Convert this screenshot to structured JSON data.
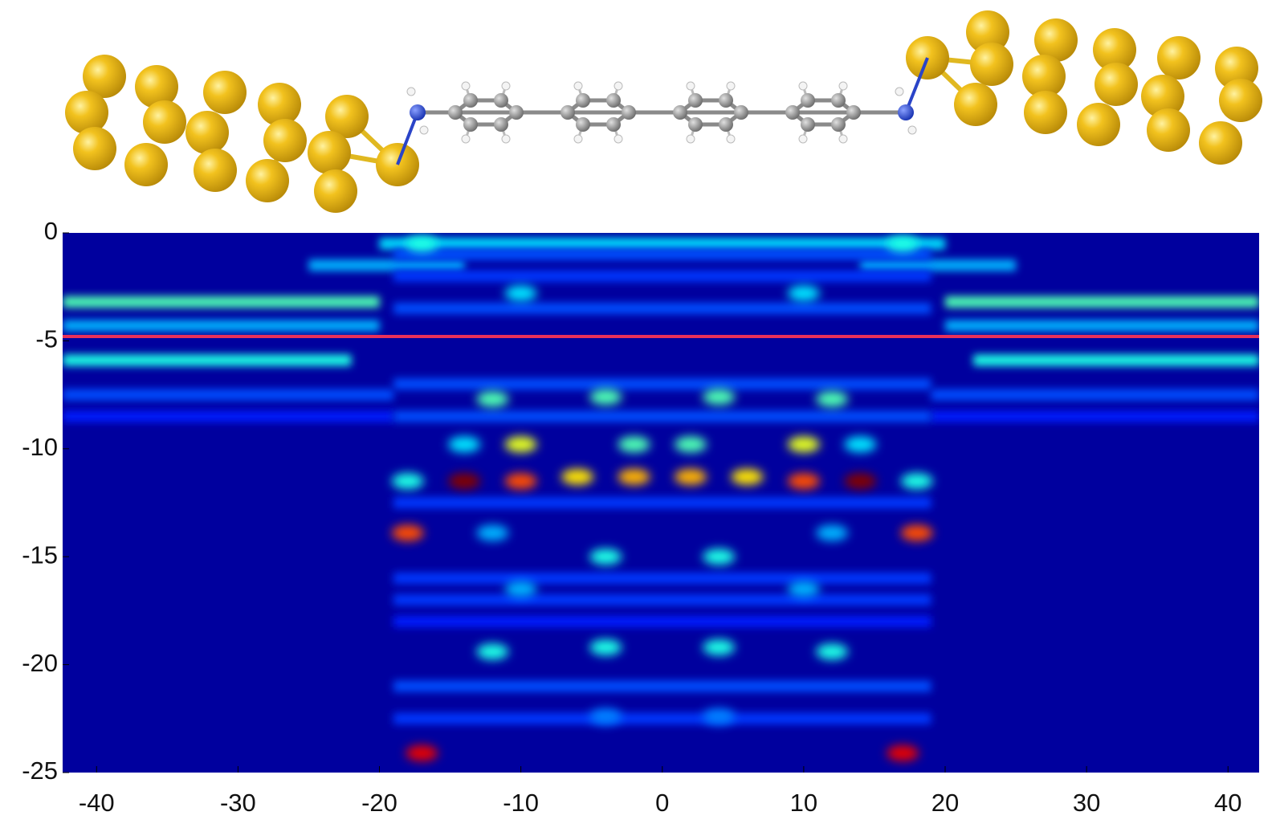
{
  "chart_data": {
    "type": "heatmap",
    "colormap": "jet",
    "xlim": [
      -42.4,
      42.2
    ],
    "ylim": [
      -25,
      0
    ],
    "zlim": [
      0,
      1
    ],
    "xticks": [
      -40,
      -30,
      -20,
      -10,
      0,
      10,
      20,
      30,
      40
    ],
    "yticks": [
      0,
      -5,
      -10,
      -15,
      -20,
      -25
    ],
    "reference_line": {
      "y": -4.8,
      "color": "#e8305a"
    },
    "bands": {
      "y": [
        -3.2,
        -3.2,
        -5.9,
        -5.9,
        -4.3,
        -4.3,
        -7.5,
        -7.5,
        -8.5,
        -8.5,
        -1.5,
        -1.5,
        -0.5,
        -1.0,
        -2.0,
        -3.5,
        -7.0,
        -8.5,
        -12.5,
        -16.0,
        -17.0,
        -18.0,
        -21.0,
        -22.5
      ],
      "x_start": [
        -42.4,
        20,
        -42.4,
        22,
        -42.4,
        20,
        -42.4,
        19,
        -42.4,
        19,
        -25,
        14,
        -20,
        -19,
        -19,
        -19,
        -19,
        -19,
        -19,
        -19,
        -19,
        -19,
        -19,
        -19
      ],
      "x_end": [
        -20,
        42.2,
        -22,
        42.2,
        -20,
        42.2,
        -19,
        42.2,
        -19,
        42.2,
        -14,
        25,
        20,
        19,
        19,
        19,
        19,
        19,
        19,
        19,
        19,
        19,
        19,
        19
      ],
      "values": [
        0.45,
        0.45,
        0.4,
        0.4,
        0.3,
        0.3,
        0.2,
        0.2,
        0.15,
        0.15,
        0.3,
        0.3,
        0.35,
        0.2,
        0.18,
        0.2,
        0.2,
        0.2,
        0.18,
        0.18,
        0.18,
        0.15,
        0.2,
        0.18
      ]
    },
    "x": [
      -14,
      14,
      -10,
      10,
      -6,
      -2,
      2,
      6,
      -18,
      18,
      -17,
      17,
      -10,
      10,
      -2,
      2,
      -18,
      18,
      -12,
      12,
      -4,
      4,
      -14,
      14,
      -4,
      4,
      -12,
      12,
      -4,
      4,
      -10,
      10,
      -17,
      17,
      -12,
      12,
      -10,
      10,
      -4,
      4
    ],
    "y": [
      -11.5,
      -11.5,
      -11.5,
      -11.5,
      -11.3,
      -11.3,
      -11.3,
      -11.3,
      -13.9,
      -13.9,
      -24.1,
      -24.1,
      -9.8,
      -9.8,
      -9.8,
      -9.8,
      -11.5,
      -11.5,
      -7.7,
      -7.7,
      -7.6,
      -7.6,
      -9.8,
      -9.8,
      -15.0,
      -15.0,
      -19.4,
      -19.4,
      -19.2,
      -19.2,
      -2.8,
      -2.8,
      -0.5,
      -0.5,
      -13.9,
      -13.9,
      -16.5,
      -16.5,
      -22.4,
      -22.4
    ],
    "values": [
      1.0,
      1.0,
      0.8,
      0.8,
      0.65,
      0.7,
      0.7,
      0.65,
      0.8,
      0.8,
      0.9,
      0.9,
      0.6,
      0.6,
      0.45,
      0.45,
      0.4,
      0.4,
      0.45,
      0.45,
      0.45,
      0.45,
      0.35,
      0.35,
      0.4,
      0.4,
      0.4,
      0.4,
      0.4,
      0.4,
      0.35,
      0.35,
      0.4,
      0.4,
      0.3,
      0.3,
      0.3,
      0.3,
      0.25,
      0.25
    ]
  }
}
